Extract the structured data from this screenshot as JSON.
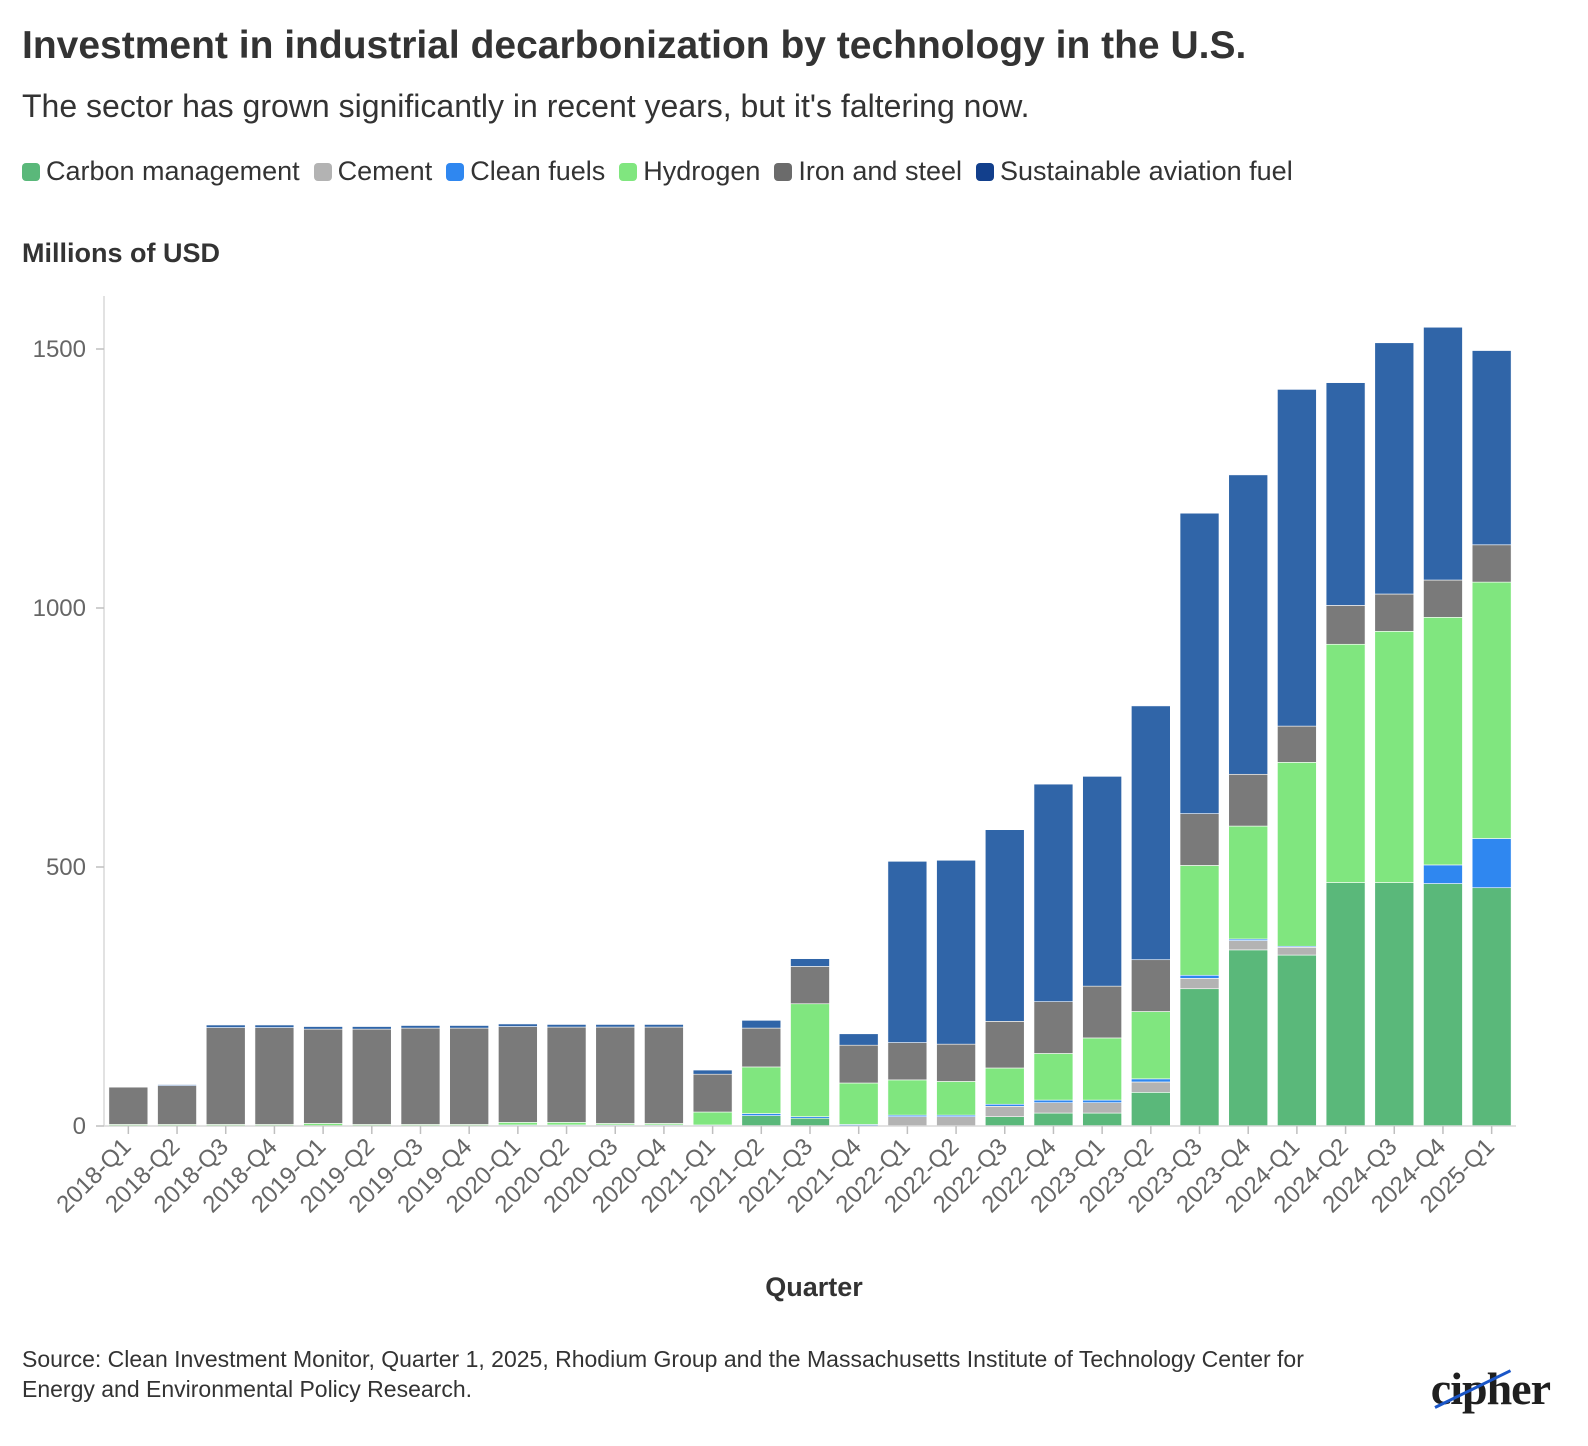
{
  "title": "Investment in industrial decarbonization by technology in the U.S.",
  "subtitle": "The sector has grown significantly in recent years, but it's faltering now.",
  "source": "Source: Clean Investment Monitor, Quarter 1, 2025, Rhodium Group and the Massachusetts Institute of Technology Center for Energy and Environmental Policy Research.",
  "logo": "cipher",
  "chart_data": {
    "type": "bar",
    "stacked": true,
    "title": "Investment in industrial decarbonization by technology in the U.S.",
    "subtitle": "The sector has grown significantly in recent years, but it's faltering now.",
    "xlabel": "Quarter",
    "ylabel": "Millions of USD",
    "ylim": [
      0,
      1600
    ],
    "yticks": [
      0,
      500,
      1000,
      1500
    ],
    "grid": false,
    "legend_position": "top",
    "categories": [
      "2018-Q1",
      "2018-Q2",
      "2018-Q3",
      "2018-Q4",
      "2019-Q1",
      "2019-Q2",
      "2019-Q3",
      "2019-Q4",
      "2020-Q1",
      "2020-Q2",
      "2020-Q3",
      "2020-Q4",
      "2021-Q1",
      "2021-Q2",
      "2021-Q3",
      "2021-Q4",
      "2022-Q1",
      "2022-Q2",
      "2022-Q3",
      "2022-Q4",
      "2023-Q1",
      "2023-Q2",
      "2023-Q3",
      "2023-Q4",
      "2024-Q1",
      "2024-Q2",
      "2024-Q3",
      "2024-Q4",
      "2025-Q1"
    ],
    "series": [
      {
        "name": "Carbon management",
        "color": "#5ab87a",
        "values": [
          0,
          0,
          0,
          0,
          0,
          0,
          0,
          0,
          0,
          0,
          0,
          0,
          0,
          20,
          15,
          0,
          0,
          0,
          18,
          25,
          25,
          65,
          265,
          340,
          330,
          470,
          470,
          468,
          460
        ]
      },
      {
        "name": "Cement",
        "color": "#b3b3b3",
        "values": [
          0,
          0,
          0,
          0,
          0,
          0,
          0,
          0,
          0,
          0,
          0,
          0,
          0,
          0,
          0,
          0,
          18,
          18,
          20,
          20,
          20,
          20,
          20,
          18,
          15,
          0,
          0,
          0,
          0
        ]
      },
      {
        "name": "Clean fuels",
        "color": "#2f87f0",
        "values": [
          0,
          0,
          0,
          0,
          0,
          0,
          0,
          0,
          2,
          2,
          2,
          2,
          2,
          4,
          3,
          3,
          3,
          3,
          4,
          5,
          5,
          6,
          6,
          3,
          2,
          0,
          0,
          36,
          95
        ]
      },
      {
        "name": "Hydrogen",
        "color": "#80e67f",
        "values": [
          3,
          3,
          3,
          3,
          5,
          3,
          3,
          3,
          5,
          5,
          3,
          3,
          25,
          90,
          218,
          80,
          68,
          65,
          70,
          90,
          120,
          130,
          212,
          218,
          355,
          460,
          485,
          478,
          495
        ]
      },
      {
        "name": "Iron and steel",
        "color": "#7a7a7a",
        "values": [
          72,
          75,
          187,
          187,
          182,
          184,
          186,
          186,
          185,
          184,
          186,
          186,
          73,
          75,
          72,
          73,
          72,
          72,
          90,
          100,
          100,
          100,
          100,
          100,
          70,
          75,
          72,
          72,
          72
        ]
      },
      {
        "name": "Sustainable aviation fuel",
        "color": "#3065a8",
        "values": [
          0,
          2,
          5,
          5,
          5,
          5,
          5,
          5,
          5,
          5,
          5,
          5,
          8,
          15,
          15,
          22,
          350,
          355,
          370,
          420,
          405,
          490,
          580,
          578,
          650,
          430,
          485,
          488,
          375
        ]
      }
    ]
  }
}
